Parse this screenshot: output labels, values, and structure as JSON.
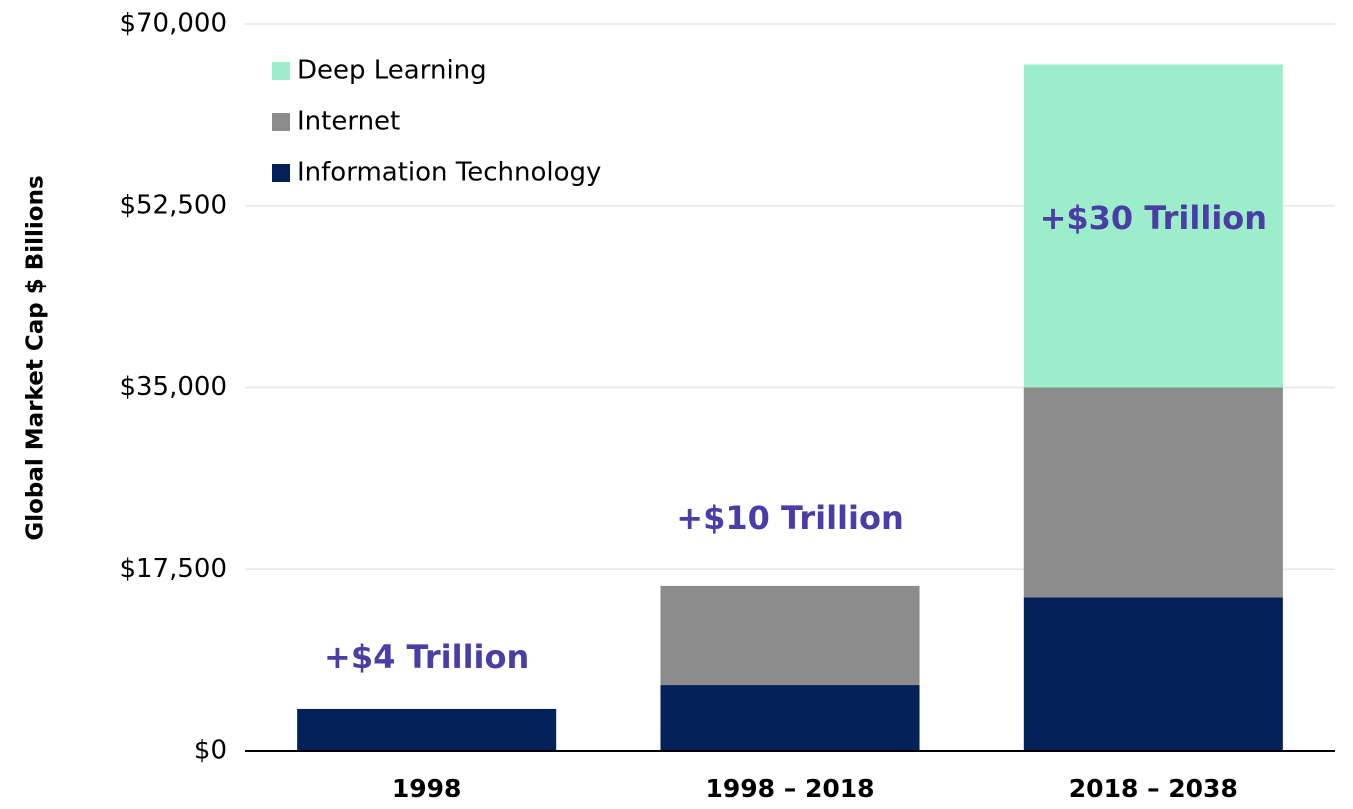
{
  "chart_data": {
    "type": "stacked_bar",
    "y_label": "Global Market Cap $ Billions",
    "categories": [
      "1998",
      "1998 – 2018",
      "2018 – 2038"
    ],
    "series": [
      {
        "name": "Information Technology",
        "color": "#022158",
        "values": [
          4050,
          6350,
          14800
        ]
      },
      {
        "name": "Internet",
        "color": "#8c8c8c",
        "values": [
          null,
          9550,
          20200
        ]
      },
      {
        "name": "Deep Learning",
        "color": "#9ceecb",
        "values": [
          null,
          null,
          31100
        ]
      }
    ],
    "annotations": [
      "+$4 Trillion",
      "+$10 Trillion",
      "+$30 Trillion"
    ],
    "ylim": [
      0,
      70000
    ],
    "yticks": [
      {
        "value": 0,
        "label": "$0"
      },
      {
        "value": 17500,
        "label": "$17,500"
      },
      {
        "value": 35000,
        "label": "$35,000"
      },
      {
        "value": 52500,
        "label": "$52,500"
      },
      {
        "value": 70000,
        "label": "$70,000"
      }
    ],
    "grid": true,
    "legend": "top-left"
  }
}
